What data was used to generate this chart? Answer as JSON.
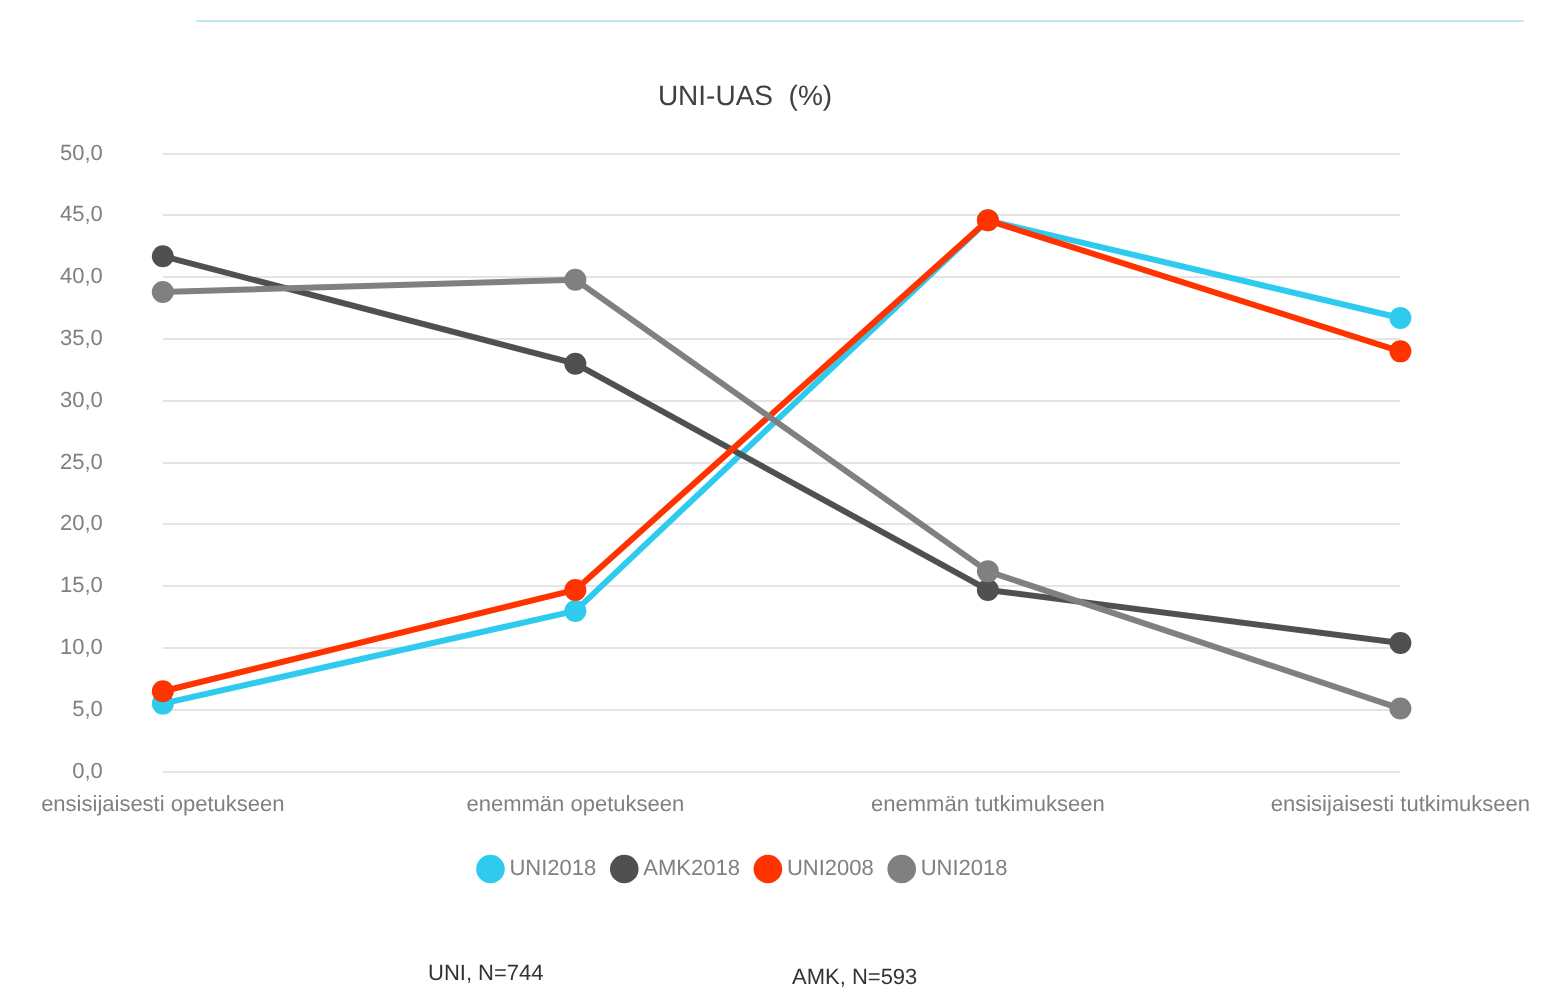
{
  "chart_data": {
    "type": "line",
    "title": "UNI-UAS  (%)",
    "categories": [
      "ensisijaisesti opetukseen",
      "enemmän opetukseen",
      "enemmän tutkimukseen",
      "ensisijaisesti tutkimukseen"
    ],
    "series": [
      {
        "name": "UNI2018",
        "color": "#2ecbef",
        "values": [
          5.5,
          13.0,
          44.6,
          36.7
        ]
      },
      {
        "name": "AMK2018",
        "color": "#505050",
        "values": [
          41.7,
          33.0,
          14.7,
          10.4
        ]
      },
      {
        "name": "UNI2008",
        "color": "#ff3300",
        "values": [
          6.5,
          14.7,
          44.6,
          34.0
        ]
      },
      {
        "name": "UNI2018",
        "color": "#808080",
        "values": [
          38.8,
          39.8,
          16.2,
          5.1
        ]
      }
    ],
    "ylim": [
      0,
      50
    ],
    "yticks": [
      {
        "value": 0,
        "label": "0,0"
      },
      {
        "value": 5,
        "label": "5,0"
      },
      {
        "value": 10,
        "label": "10,0"
      },
      {
        "value": 15,
        "label": "15,0"
      },
      {
        "value": 20,
        "label": "20,0"
      },
      {
        "value": 25,
        "label": "25,0"
      },
      {
        "value": 30,
        "label": "30,0"
      },
      {
        "value": 35,
        "label": "35,0"
      },
      {
        "value": 40,
        "label": "40,0"
      },
      {
        "value": 45,
        "label": "45,0"
      },
      {
        "value": 50,
        "label": "50,0"
      }
    ],
    "grid": "y",
    "legend": "bottom",
    "marker": "circle",
    "line_style": "solid",
    "annotations": [
      "UNI, N=744",
      "AMK, N=593"
    ]
  }
}
